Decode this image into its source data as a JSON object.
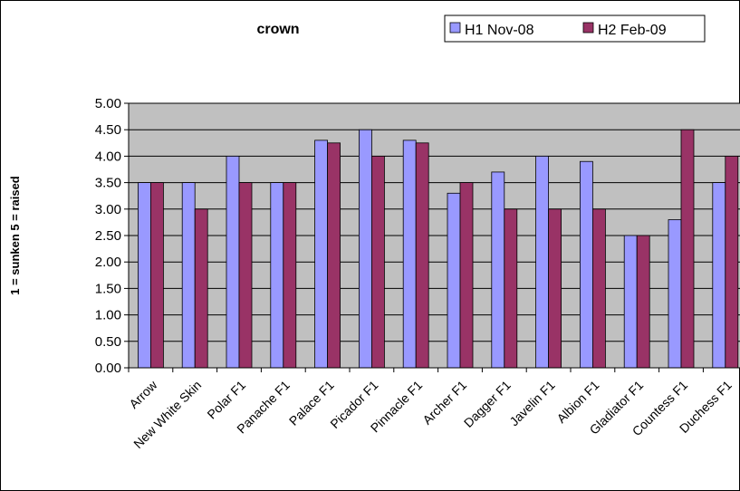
{
  "chart_data": {
    "type": "bar",
    "title": "crown",
    "xlabel": "",
    "ylabel": "1 = sunken   5 = raised",
    "ylim": [
      0,
      5
    ],
    "ytick_step": 0.5,
    "ytick_labels": [
      "0.00",
      "0.50",
      "1.00",
      "1.50",
      "2.00",
      "2.50",
      "3.00",
      "3.50",
      "4.00",
      "4.50",
      "5.00"
    ],
    "grid": "horizontal",
    "legend_position": "top-right",
    "plot_background": "#c0c0c0",
    "categories": [
      "Arrow",
      "New White Skin",
      "Polar F1",
      "Panache F1",
      "Palace F1",
      "Picador F1",
      "Pinnacle F1",
      "Archer F1",
      "Dagger F1",
      "Javelin F1",
      "Albion F1",
      "Gladiator F1",
      "Countess F1",
      "Duchess F1"
    ],
    "series": [
      {
        "name": "H1 Nov-08",
        "color": "#9999ff",
        "values": [
          3.5,
          3.5,
          4.0,
          3.5,
          4.3,
          4.5,
          4.3,
          3.3,
          3.7,
          4.0,
          3.9,
          2.5,
          2.8,
          3.5
        ]
      },
      {
        "name": "H2 Feb-09",
        "color": "#993366",
        "values": [
          3.5,
          3.0,
          3.5,
          3.5,
          4.25,
          4.0,
          4.25,
          3.5,
          3.0,
          3.0,
          3.0,
          2.5,
          4.5,
          4.0
        ]
      }
    ]
  }
}
